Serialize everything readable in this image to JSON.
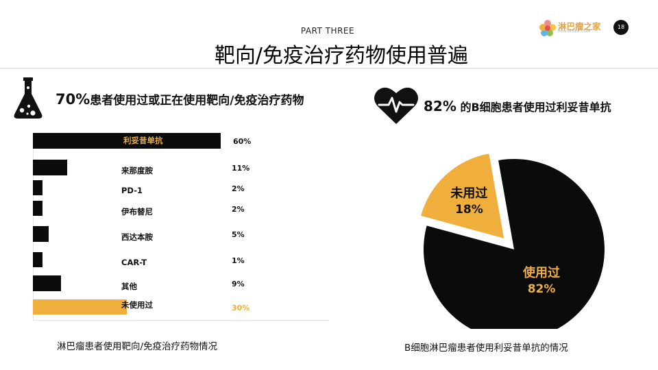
{
  "header": {
    "part": "PART THREE",
    "title": "靶向/免疫治疗药物使用普遍",
    "page_number": "18",
    "logo_text": "淋巴瘤之家",
    "logo_sub": "HOUSE086.COM"
  },
  "left": {
    "headline_pct": "70%",
    "headline_text": "患者使用过或正在使用靶向/免疫治疗药物",
    "caption": "淋巴瘤患者使用靶向/免疫治疗药物情况"
  },
  "right": {
    "headline_pct": "82%",
    "headline_text": " 的B细胞患者使用过利妥昔单抗",
    "caption": "B细胞淋巴瘤患者使用利妥昔单抗的情况"
  },
  "colors": {
    "accent": "#f0ae3c",
    "dark": "#0b0b0b"
  },
  "chart_data": [
    {
      "type": "bar",
      "orientation": "horizontal",
      "categories": [
        "利妥昔单抗",
        "来那度胺",
        "PD-1",
        "伊布替尼",
        "西达本胺",
        "CAR-T",
        "其他",
        "未使用过"
      ],
      "values": [
        60,
        11,
        2,
        2,
        5,
        1,
        9,
        30
      ],
      "value_labels": [
        "60%",
        "11%",
        "2%",
        "2%",
        "5%",
        "1%",
        "9%",
        "30%"
      ],
      "highlight": [
        false,
        false,
        false,
        false,
        false,
        false,
        false,
        true
      ],
      "unit": "%",
      "caption": "淋巴瘤患者使用靶向/免疫治疗药物情况"
    },
    {
      "type": "pie",
      "slices": [
        {
          "label": "使用过",
          "value": 82,
          "value_label": "82%",
          "color": "#0b0b0b"
        },
        {
          "label": "未用过",
          "value": 18,
          "value_label": "18%",
          "color": "#f0ae3c",
          "exploded": true
        }
      ],
      "caption": "B细胞淋巴瘤患者使用利妥昔单抗的情况"
    }
  ]
}
